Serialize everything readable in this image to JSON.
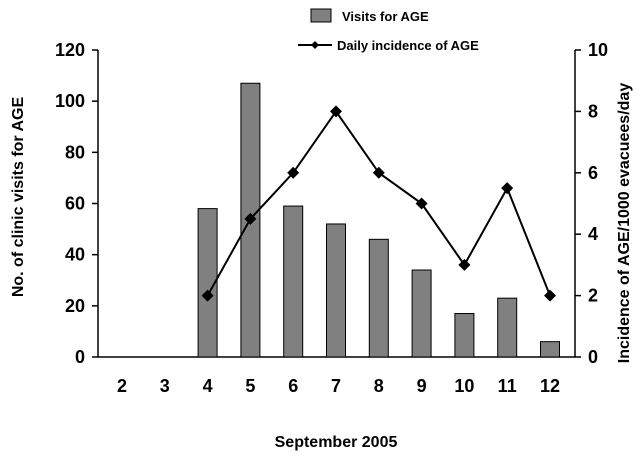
{
  "chart_data": {
    "type": "bar",
    "categories": [
      "2",
      "3",
      "4",
      "5",
      "6",
      "7",
      "8",
      "9",
      "10",
      "11",
      "12"
    ],
    "series": [
      {
        "name": "Visits for AGE",
        "type": "bar",
        "axis": "left",
        "values": [
          0,
          0,
          58,
          107,
          59,
          52,
          46,
          34,
          17,
          23,
          6
        ],
        "color": "#808080"
      },
      {
        "name": "Daily incidence of AGE",
        "type": "line",
        "axis": "right",
        "values": [
          null,
          null,
          2,
          4.5,
          6,
          8,
          6,
          5,
          3,
          5.5,
          2
        ],
        "color": "#000000",
        "marker": "diamond"
      }
    ],
    "xlabel": "September 2005",
    "ylabel": "No. of clinic visits for AGE",
    "y2label": "Incidence of AGE/1000 evacuees/day",
    "ylim": [
      0,
      120
    ],
    "y2lim": [
      0,
      10
    ],
    "yticks": [
      0,
      20,
      40,
      60,
      80,
      100,
      120
    ],
    "y2ticks": [
      0,
      2,
      4,
      6,
      8,
      10
    ],
    "grid": false,
    "legend_position": "top-center"
  }
}
